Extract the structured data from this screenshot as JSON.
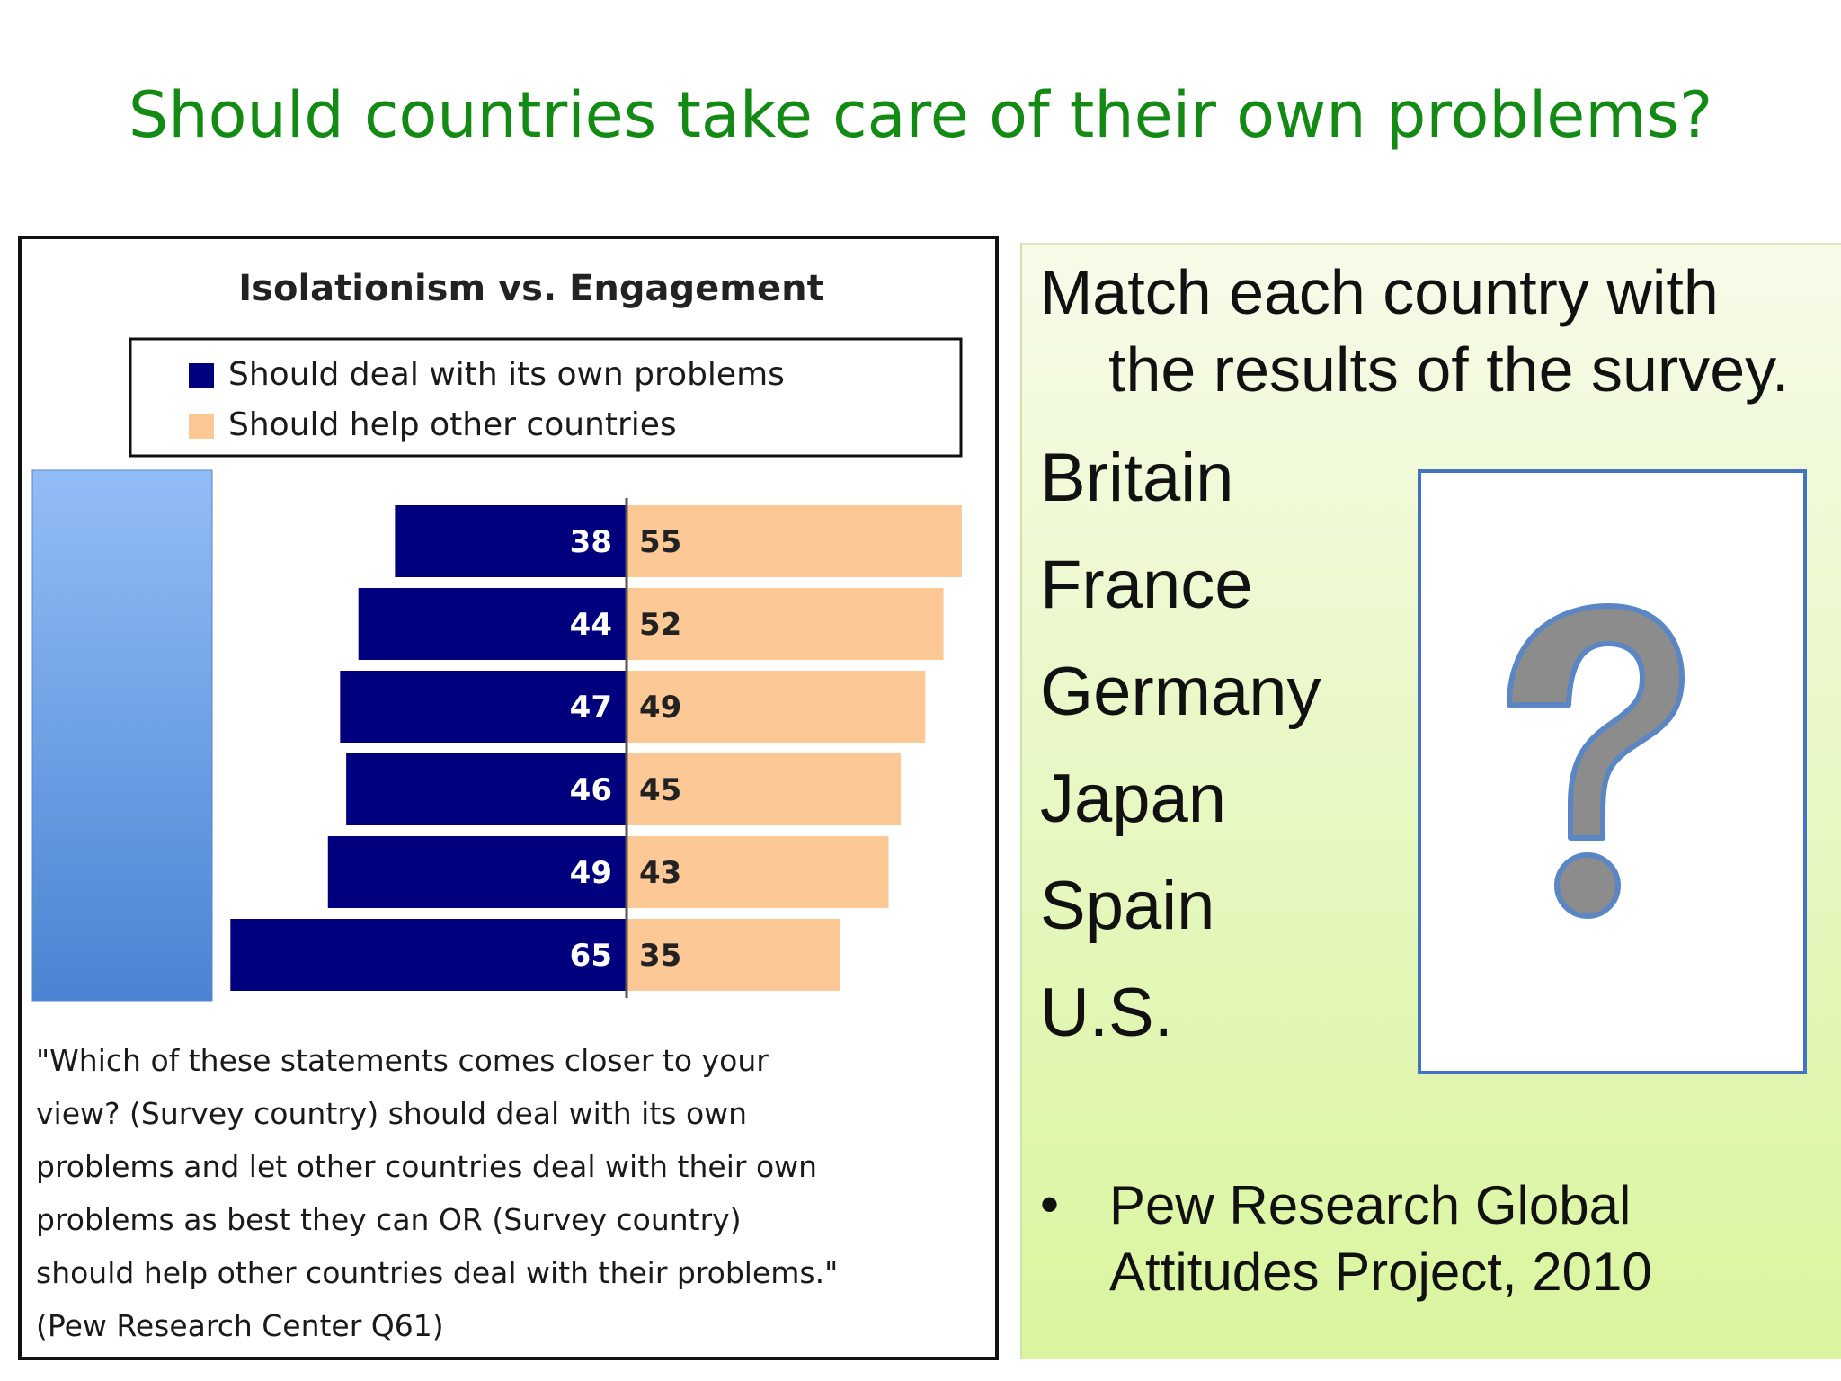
{
  "slide": {
    "title": "Should countries take care of their own problems?"
  },
  "chart_data": {
    "type": "bar",
    "orientation": "diverging-horizontal",
    "title": "Isolationism vs. Engagement",
    "series": [
      {
        "name": "Should deal with its own problems",
        "color": "#00007f",
        "values": [
          38,
          44,
          47,
          46,
          49,
          65
        ]
      },
      {
        "name": "Should help other countries",
        "color": "#fbc896",
        "values": [
          55,
          52,
          49,
          45,
          43,
          35
        ]
      }
    ],
    "row_label_panel_color": [
      "#93bdf7",
      "#4a84d2"
    ],
    "legend": "top",
    "grid": false
  },
  "chart_note": {
    "lines": [
      "\"Which of these statements comes closer to your",
      "view? (Survey country) should deal with its own",
      "problems and let other countries deal with their own",
      "problems as best they can OR (Survey country)",
      "should help other countries deal with their problems.\"",
      "(Pew Research Center Q61)"
    ]
  },
  "right_panel": {
    "instruction_line1": "Match each country with",
    "instruction_line2": "the results of the survey.",
    "countries": [
      "Britain",
      "France",
      "Germany",
      "Japan",
      "Spain",
      "U.S."
    ],
    "answer_icon": "question-mark-icon",
    "bullet": "•",
    "source_line1": "Pew Research Global",
    "source_line2": "Attitudes Project, 2010"
  }
}
